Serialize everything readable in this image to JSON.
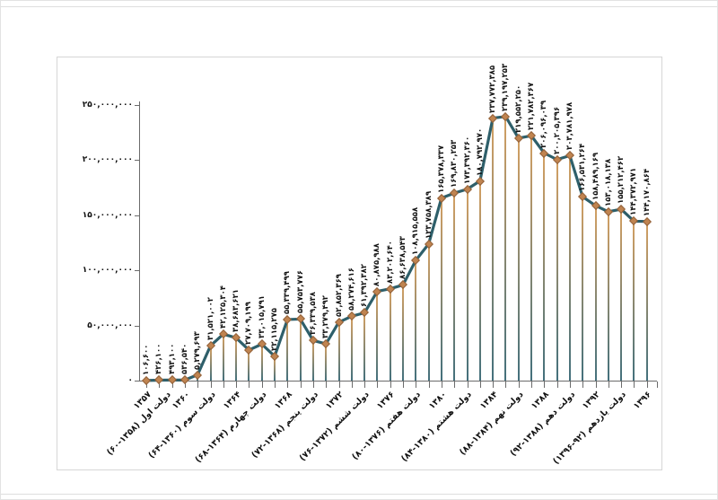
{
  "page": {
    "background": "#ffffff",
    "frame_border_color": "#d6d6d6"
  },
  "chart_data": {
    "type": "line",
    "title": "",
    "rtl": true,
    "grid": false,
    "legend": "none",
    "ylim": [
      0,
      250000000
    ],
    "y_tick_step": 50000000,
    "y_tick_labels": [
      "۰",
      "۵۰,۰۰۰,۰۰۰",
      "۱۰۰,۰۰۰,۰۰۰",
      "۱۵۰,۰۰۰,۰۰۰",
      "۲۰۰,۰۰۰,۰۰۰",
      "۲۵۰,۰۰۰,۰۰۰"
    ],
    "points": [
      {
        "value": 106600,
        "label": "۱۰۶,۶۰۰"
      },
      {
        "value": 426100,
        "label": "۴۲۶,۱۰۰"
      },
      {
        "value": 493100,
        "label": "۴۹۳,۱۰۰"
      },
      {
        "value": 536540,
        "label": "۵۳۶,۵۴۰"
      },
      {
        "value": 5279693,
        "label": "۵,۲۷۹,۶۹۳"
      },
      {
        "value": 31521002,
        "label": "۳۱,۵۲۱,۰۰۲"
      },
      {
        "value": 42125304,
        "label": "۴۲,۱۲۵,۳۰۴"
      },
      {
        "value": 38683621,
        "label": "۳۸,۶۸۳,۶۲۱"
      },
      {
        "value": 27709199,
        "label": "۲۷,۷۰۹,۱۹۹"
      },
      {
        "value": 33015791,
        "label": "۳۳,۰۱۵,۷۹۱"
      },
      {
        "value": 22115275,
        "label": "۲۲,۱۱۵,۲۷۵"
      },
      {
        "value": 55339499,
        "label": "۵۵,۳۳۹,۴۹۹"
      },
      {
        "value": 55753776,
        "label": "۵۵,۷۵۳,۷۷۶"
      },
      {
        "value": 36339538,
        "label": "۳۶,۳۳۹,۵۳۸"
      },
      {
        "value": 33279492,
        "label": "۳۳,۲۷۹,۴۹۲"
      },
      {
        "value": 52852369,
        "label": "۵۲,۸۵۲,۳۶۹"
      },
      {
        "value": 58274616,
        "label": "۵۸,۲۷۴,۶۱۶"
      },
      {
        "value": 61392382,
        "label": "۶۱,۳۹۲,۳۸۲"
      },
      {
        "value": 80875988,
        "label": "۸۰,۸۷۵,۹۸۸"
      },
      {
        "value": 83202640,
        "label": "۸۳,۲۰۲,۶۴۰"
      },
      {
        "value": 86638543,
        "label": "۸۶,۶۳۸,۵۴۳"
      },
      {
        "value": 108915558,
        "label": "۱۰۸,۹۱۵,۵۵۸"
      },
      {
        "value": 123758389,
        "label": "۱۲۳,۷۵۸,۳۸۹"
      },
      {
        "value": 165378337,
        "label": "۱۶۵,۳۷۸,۳۳۷"
      },
      {
        "value": 169830253,
        "label": "۱۶۹,۸۳۰,۲۵۳"
      },
      {
        "value": 173392360,
        "label": "۱۷۳,۳۹۲,۳۶۰"
      },
      {
        "value": 180792970,
        "label": "۱۸۰,۷۹۲,۹۷۰"
      },
      {
        "value": 237772385,
        "label": "۲۳۷,۷۷۲,۳۸۵"
      },
      {
        "value": 239197253,
        "label": "۲۳۹,۱۹۷,۲۵۳"
      },
      {
        "value": 219552250,
        "label": "۲۱۹,۵۵۲,۲۵۰"
      },
      {
        "value": 221782367,
        "label": "۲۲۱,۷۸۲,۳۶۷"
      },
      {
        "value": 206096039,
        "label": "۲۰۶,۰۹۶,۰۳۹"
      },
      {
        "value": 200205396,
        "label": "۲۰۰,۲۰۵,۳۹۶"
      },
      {
        "value": 203781978,
        "label": "۲۰۳,۷۸۱,۹۷۸"
      },
      {
        "value": 166531264,
        "label": "۱۶۶,۵۳۱,۲۶۴"
      },
      {
        "value": 158489169,
        "label": "۱۵۸,۴۸۹,۱۶۹"
      },
      {
        "value": 153018138,
        "label": "۱۵۳,۰۱۸,۱۳۸"
      },
      {
        "value": 155212462,
        "label": "۱۵۵,۲۱۲,۴۶۲"
      },
      {
        "value": 144372971,
        "label": "۱۴۴,۳۷۲,۹۷۱"
      },
      {
        "value": 144170864,
        "label": "۱۴۴,۱۷۰,۸۶۴"
      }
    ],
    "x_tick_labels": [
      {
        "index": 0,
        "label": "۱۳۵۷"
      },
      {
        "index": 1.5,
        "label": "دولت اول (۱۳۵۸-۶۰)"
      },
      {
        "index": 3,
        "label": "۱۳۶۰"
      },
      {
        "index": 5,
        "label": "دولت سوم (۱۳۶۰-۶۴)"
      },
      {
        "index": 7,
        "label": "۱۳۶۴"
      },
      {
        "index": 9,
        "label": "دولت چهارم (۱۳۶۴-۶۸)"
      },
      {
        "index": 11,
        "label": "۱۳۶۸"
      },
      {
        "index": 13,
        "label": "دولت پنجم (۱۳۶۸-۷۲)"
      },
      {
        "index": 15,
        "label": "۱۳۷۲"
      },
      {
        "index": 17,
        "label": "دولت ششم (۱۳۷۲-۷۶)"
      },
      {
        "index": 19,
        "label": "۱۳۷۶"
      },
      {
        "index": 21,
        "label": "دولت هفتم (۱۳۷۶-۸۰)"
      },
      {
        "index": 23,
        "label": "۱۳۸۰"
      },
      {
        "index": 25,
        "label": "دولت هشتم (۱۳۸۰-۸۴)"
      },
      {
        "index": 27,
        "label": "۱۳۸۴"
      },
      {
        "index": 29,
        "label": "دولت نهم (۱۳۸۴-۸۸)"
      },
      {
        "index": 31,
        "label": "۱۳۸۸"
      },
      {
        "index": 33,
        "label": "دولت دهم (۱۳۸۸-۹۲)"
      },
      {
        "index": 35,
        "label": "۱۳۹۲"
      },
      {
        "index": 37,
        "label": "دولت یازدهم (۹۲-۱۳۹۶)"
      },
      {
        "index": 39,
        "label": "۱۳۹۶"
      }
    ],
    "colors": {
      "line": "#2e5f6a",
      "marker_fill": "#c08450",
      "marker_border": "#92613a",
      "dropline_top": "#d3a063",
      "dropline_bottom": "#43707c",
      "axis": "#6b6b6b",
      "label_text": "#111111"
    }
  }
}
